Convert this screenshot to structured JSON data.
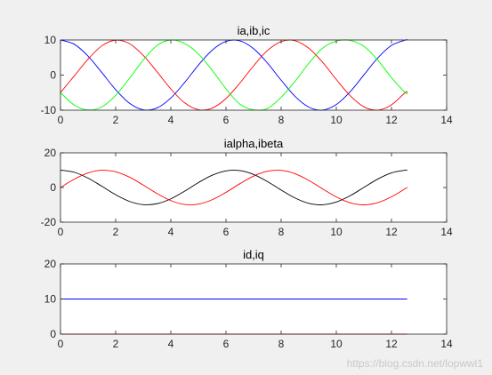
{
  "watermark": "https://blog.csdn.net/lopwwl1",
  "chart_data": [
    {
      "type": "line",
      "title": "ia,ib,ic",
      "xlabel": "",
      "ylabel": "",
      "xlim": [
        0,
        14
      ],
      "ylim": [
        -10,
        10
      ],
      "xticks": [
        0,
        2,
        4,
        6,
        8,
        10,
        12,
        14
      ],
      "yticks": [
        -10,
        0,
        10
      ],
      "grid": false,
      "x": [
        0,
        0.5,
        1,
        1.5,
        2,
        2.5,
        3,
        3.5,
        4,
        4.5,
        5,
        5.5,
        6,
        6.5,
        7,
        7.5,
        8,
        8.5,
        9,
        9.5,
        10,
        10.5,
        11,
        11.5,
        12,
        12.5,
        12.57
      ],
      "series": [
        {
          "color": "#0000ff",
          "y": [
            10,
            8.78,
            5.4,
            0.71,
            -4.16,
            -8.01,
            -9.9,
            -9.36,
            -6.54,
            -2.11,
            2.84,
            7.09,
            9.6,
            9.77,
            7.54,
            3.47,
            -1.46,
            -6.02,
            -9.11,
            -9.97,
            -8.39,
            -4.76,
            0.04,
            4.85,
            8.44,
            9.97,
            10
          ]
        },
        {
          "color": "#ff0000",
          "y": [
            -5.0,
            -0.23,
            4.55,
            8.34,
            9.94,
            8.96,
            5.61,
            0.93,
            -3.95,
            -7.89,
            -9.87,
            -9.42,
            -6.68,
            -2.31,
            2.63,
            6.97,
            9.54,
            9.8,
            7.65,
            3.68,
            -1.24,
            -5.85,
            -9.04,
            -9.98,
            -8.48,
            -4.96,
            -4.99
          ]
        },
        {
          "color": "#00ff00",
          "y": [
            -5.0,
            -8.55,
            -9.95,
            -9.05,
            -5.78,
            -0.95,
            4.29,
            8.43,
            10.0,
            9.0,
            6.02,
            1.35,
            -3.89,
            -8.25,
            -9.89,
            -9.55,
            -6.3,
            -1.82,
            3.33,
            7.65,
            9.66,
            9.9,
            8.2,
            4.28,
            -0.72,
            -5.01,
            -5.01
          ]
        }
      ]
    },
    {
      "type": "line",
      "title": "ialpha,ibeta",
      "xlabel": "",
      "ylabel": "",
      "xlim": [
        0,
        14
      ],
      "ylim": [
        -20,
        20
      ],
      "xticks": [
        0,
        2,
        4,
        6,
        8,
        10,
        12,
        14
      ],
      "yticks": [
        -20,
        0,
        20
      ],
      "grid": false,
      "x": [
        0,
        0.5,
        1,
        1.5,
        2,
        2.5,
        3,
        3.5,
        4,
        4.5,
        5,
        5.5,
        6,
        6.5,
        7,
        7.5,
        8,
        8.5,
        9,
        9.5,
        10,
        10.5,
        11,
        11.5,
        12,
        12.5,
        12.57
      ],
      "series": [
        {
          "color": "#000000",
          "y": [
            10,
            8.78,
            5.4,
            0.71,
            -4.16,
            -8.01,
            -9.9,
            -9.36,
            -6.54,
            -2.11,
            2.84,
            7.09,
            9.6,
            9.77,
            7.54,
            3.47,
            -1.46,
            -6.02,
            -9.11,
            -9.97,
            -8.39,
            -4.76,
            0.04,
            4.85,
            8.44,
            9.97,
            10
          ]
        },
        {
          "color": "#ff0000",
          "y": [
            0,
            4.79,
            8.41,
            9.97,
            9.09,
            5.98,
            1.41,
            -3.51,
            -7.57,
            -9.78,
            -9.59,
            -7.06,
            -2.79,
            2.15,
            6.57,
            9.38,
            9.89,
            7.98,
            4.12,
            -0.75,
            -5.44,
            -8.79,
            -10.0,
            -8.75,
            -5.37,
            -0.66,
            0
          ]
        }
      ]
    },
    {
      "type": "line",
      "title": "id,iq",
      "xlabel": "",
      "ylabel": "",
      "xlim": [
        0,
        14
      ],
      "ylim": [
        0,
        20
      ],
      "xticks": [
        0,
        2,
        4,
        6,
        8,
        10,
        12,
        14
      ],
      "yticks": [
        0,
        10,
        20
      ],
      "grid": false,
      "x": [
        0,
        12.57
      ],
      "series": [
        {
          "color": "#0000ff",
          "y": [
            10,
            10
          ]
        },
        {
          "color": "#ff0000",
          "y": [
            0,
            0
          ]
        }
      ]
    }
  ]
}
